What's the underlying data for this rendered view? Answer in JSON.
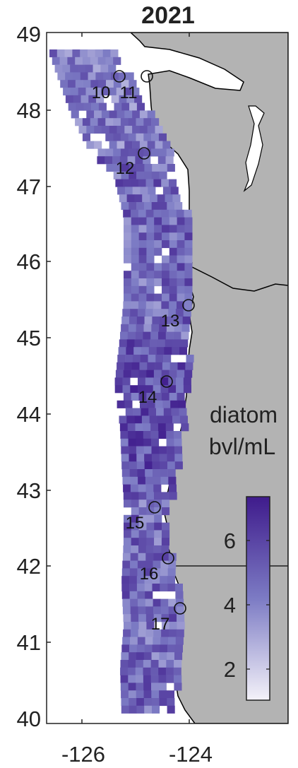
{
  "title": "2021",
  "y_ticks": [
    "49",
    "48",
    "47",
    "46",
    "45",
    "44",
    "43",
    "42",
    "41",
    "40"
  ],
  "x_ticks": [
    "-126",
    "-124"
  ],
  "colorbar": {
    "label_line1": "diatom",
    "label_line2": "bvl/mL",
    "ticks": [
      "6",
      "4",
      "2"
    ],
    "colors": {
      "low": "#f4f2f9",
      "mid": "#7c7bc4",
      "high": "#3f1b8c"
    }
  },
  "stations": [
    {
      "id": "10"
    },
    {
      "id": "11"
    },
    {
      "id": "12"
    },
    {
      "id": "13"
    },
    {
      "id": "14"
    },
    {
      "id": "15"
    },
    {
      "id": "16"
    },
    {
      "id": "17"
    }
  ],
  "colors": {
    "land": "#b3b3b3",
    "coast": "#000000",
    "frame": "#222222"
  }
}
